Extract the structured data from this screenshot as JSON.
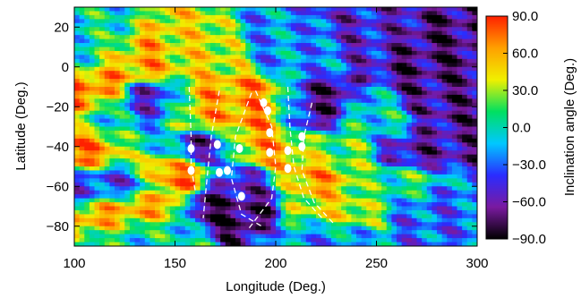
{
  "chart_data": {
    "type": "heatmap",
    "title": "",
    "xlabel": "Longitude (Deg.)",
    "ylabel": "Latitude (Deg.)",
    "xlim": [
      100,
      300
    ],
    "ylim": [
      -90,
      30
    ],
    "xticks": [
      100,
      150,
      200,
      250,
      300
    ],
    "xtick_labels": [
      "100",
      "150",
      "200",
      "250",
      "300"
    ],
    "yticks": [
      20,
      0,
      -20,
      -40,
      -60,
      -80
    ],
    "ytick_labels": [
      "20",
      "0",
      "−20",
      "−40",
      "−60",
      "−80"
    ],
    "colorbar": {
      "label": "Inclination angle (Deg.)",
      "range": [
        -90,
        90
      ],
      "ticks": [
        90,
        60,
        30,
        0,
        -30,
        -60,
        -90
      ],
      "tick_labels": [
        "90.0",
        "60.0",
        "30.0",
        "0.0",
        "−30.0",
        "−60.0",
        "−90.0"
      ],
      "colormap": [
        "#000000",
        "#7a1aa0",
        "#2a2cff",
        "#00c8ff",
        "#00e060",
        "#f0f000",
        "#ffa000",
        "#ff2000"
      ]
    },
    "grid": false,
    "legend": "none",
    "markers": [
      {
        "lon": 158,
        "lat": -41
      },
      {
        "lon": 158,
        "lat": -52
      },
      {
        "lon": 171,
        "lat": -39
      },
      {
        "lon": 172,
        "lat": -53
      },
      {
        "lon": 176,
        "lat": -52
      },
      {
        "lon": 182,
        "lat": -41
      },
      {
        "lon": 183,
        "lat": -65
      },
      {
        "lon": 194,
        "lat": -18
      },
      {
        "lon": 196,
        "lat": -22
      },
      {
        "lon": 197,
        "lat": -33
      },
      {
        "lon": 197,
        "lat": -43
      },
      {
        "lon": 206,
        "lat": -42
      },
      {
        "lon": 206,
        "lat": -51
      },
      {
        "lon": 213,
        "lat": -35
      },
      {
        "lon": 213,
        "lat": -40
      }
    ],
    "dashed_curves": [
      [
        [
          157,
          -10
        ],
        [
          158,
          -35
        ],
        [
          158,
          -50
        ],
        [
          160,
          -62
        ]
      ],
      [
        [
          172,
          -12
        ],
        [
          168,
          -35
        ],
        [
          166,
          -55
        ],
        [
          164,
          -76
        ]
      ],
      [
        [
          188,
          -13
        ],
        [
          180,
          -35
        ],
        [
          178,
          -56
        ],
        [
          183,
          -74
        ],
        [
          193,
          -80
        ]
      ],
      [
        [
          190,
          -12
        ],
        [
          198,
          -30
        ],
        [
          200,
          -50
        ],
        [
          198,
          -66
        ],
        [
          186,
          -82
        ]
      ],
      [
        [
          206,
          -10
        ],
        [
          207,
          -30
        ],
        [
          209,
          -50
        ],
        [
          214,
          -66
        ],
        [
          223,
          -76
        ]
      ],
      [
        [
          218,
          -18
        ],
        [
          214,
          -35
        ],
        [
          213,
          -52
        ],
        [
          219,
          -68
        ],
        [
          229,
          -79
        ]
      ]
    ],
    "field_blobs": [
      {
        "lon": 110,
        "lat": 10,
        "v": 0
      },
      {
        "lon": 130,
        "lat": 5,
        "v": 60
      },
      {
        "lon": 160,
        "lat": 5,
        "v": 40
      },
      {
        "lon": 210,
        "lat": 10,
        "v": -20
      },
      {
        "lon": 245,
        "lat": 15,
        "v": -50
      },
      {
        "lon": 280,
        "lat": 10,
        "v": -70
      },
      {
        "lon": 105,
        "lat": -15,
        "v": 70
      },
      {
        "lon": 120,
        "lat": -25,
        "v": 0
      },
      {
        "lon": 140,
        "lat": -20,
        "v": -60
      },
      {
        "lon": 160,
        "lat": -22,
        "v": 55
      },
      {
        "lon": 175,
        "lat": -18,
        "v": 60
      },
      {
        "lon": 195,
        "lat": -22,
        "v": 75
      },
      {
        "lon": 215,
        "lat": -22,
        "v": -70
      },
      {
        "lon": 250,
        "lat": -28,
        "v": 0
      },
      {
        "lon": 285,
        "lat": -20,
        "v": -65
      },
      {
        "lon": 110,
        "lat": -42,
        "v": 70
      },
      {
        "lon": 135,
        "lat": -38,
        "v": 0
      },
      {
        "lon": 165,
        "lat": -42,
        "v": -65
      },
      {
        "lon": 190,
        "lat": -40,
        "v": 60
      },
      {
        "lon": 230,
        "lat": -42,
        "v": 20
      },
      {
        "lon": 270,
        "lat": -40,
        "v": -60
      },
      {
        "lon": 120,
        "lat": -58,
        "v": -40
      },
      {
        "lon": 150,
        "lat": -52,
        "v": 75
      },
      {
        "lon": 185,
        "lat": -60,
        "v": -55
      },
      {
        "lon": 215,
        "lat": -55,
        "v": 60
      },
      {
        "lon": 260,
        "lat": -60,
        "v": 10
      },
      {
        "lon": 130,
        "lat": -72,
        "v": 60
      },
      {
        "lon": 180,
        "lat": -72,
        "v": -75
      },
      {
        "lon": 225,
        "lat": -72,
        "v": 40
      },
      {
        "lon": 280,
        "lat": -70,
        "v": -30
      },
      {
        "lon": 140,
        "lat": -84,
        "v": 0
      },
      {
        "lon": 220,
        "lat": -85,
        "v": -20
      }
    ]
  }
}
